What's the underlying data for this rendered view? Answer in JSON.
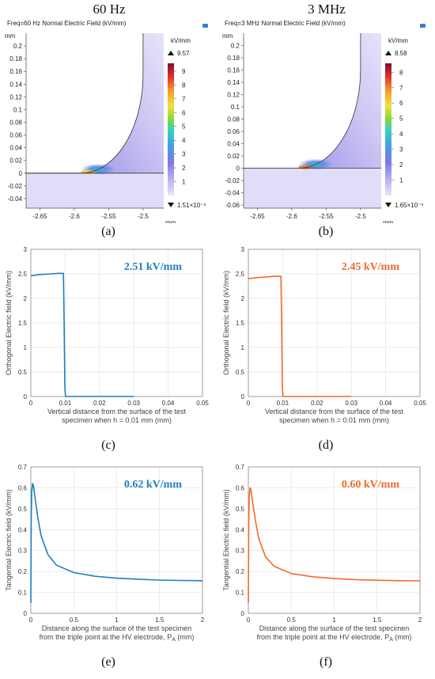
{
  "column_titles": [
    "60 Hz",
    "3 MHz"
  ],
  "sublabels": [
    "(a)",
    "(b)",
    "(c)",
    "(d)",
    "(e)",
    "(f)"
  ],
  "colors": {
    "series_60hz": "#1f7fc0",
    "series_3mhz": "#f06a2a",
    "field_fill": "#dcd8f5",
    "field_edge": "#8f86e0"
  },
  "chart_data": [
    {
      "type": "heatmap",
      "title": "Freq=60 Hz  Normal Electric Field (kV/mm)",
      "x_unit": "mm",
      "y_unit": "mm",
      "x_ticks": [
        "-2.65",
        "-2.6",
        "-2.55",
        "-2.5"
      ],
      "y_ticks": [
        "0.2",
        "0.18",
        "0.16",
        "0.14",
        "0.12",
        "0.1",
        "0.08",
        "0.06",
        "0.04",
        "0.02",
        "0",
        "-0.02",
        "-0.04"
      ],
      "xlim": [
        -2.67,
        -2.47
      ],
      "ylim": [
        -0.055,
        0.22
      ],
      "colorbar": {
        "unit": "kV/mm",
        "max_label": "9.57",
        "min_label": "1.51×10⁻⁶",
        "ticks": [
          "9",
          "8",
          "7",
          "6",
          "5",
          "4",
          "3",
          "2",
          "1"
        ],
        "max": 9.57,
        "min": 0
      }
    },
    {
      "type": "heatmap",
      "title": "Freq=3 MHz  Normal Electric Field (kV/mm)",
      "x_unit": "mm",
      "y_unit": "mm",
      "x_ticks": [
        "-2.65",
        "-2.6",
        "-2.55",
        "-2.5"
      ],
      "y_ticks": [
        "0.2",
        "0.18",
        "0.16",
        "0.14",
        "0.12",
        "0.1",
        "0.08",
        "0.06",
        "0.04",
        "0.02",
        "0",
        "-0.02",
        "-0.04",
        "-0.06"
      ],
      "xlim": [
        -2.67,
        -2.47
      ],
      "ylim": [
        -0.065,
        0.22
      ],
      "colorbar": {
        "unit": "kV/mm",
        "max_label": "8.58",
        "min_label": "1.65×10⁻⁶",
        "ticks": [
          "8",
          "7",
          "6",
          "5",
          "4",
          "3",
          "2",
          "1"
        ],
        "max": 8.58,
        "min": 0
      }
    },
    {
      "type": "line",
      "xlabel": "Vertical distance from the surface of the test specimen when h = 0.01 mm (mm)",
      "ylabel": "Orthogonal Electric field (kV/mm)",
      "annotation": "2.51 kV/mm",
      "xlim": [
        0,
        0.05
      ],
      "ylim": [
        0,
        3
      ],
      "x_ticks": [
        "0",
        "0.01",
        "0.02",
        "0.03",
        "0.04",
        "0.05"
      ],
      "y_ticks": [
        "0",
        "0.5",
        "1",
        "1.5",
        "2",
        "2.5",
        "3"
      ],
      "grid": true,
      "series": [
        {
          "x": [
            0,
            0.002,
            0.004,
            0.006,
            0.008,
            0.0095,
            0.0097,
            0.0099,
            0.0101,
            0.015,
            0.02,
            0.025,
            0.03
          ],
          "y": [
            2.46,
            2.48,
            2.49,
            2.5,
            2.51,
            2.51,
            1.5,
            0.2,
            0,
            0,
            0,
            0,
            0
          ]
        }
      ]
    },
    {
      "type": "line",
      "xlabel": "Vertical distance from the surface of the test specimen when h = 0.01 mm (mm)",
      "ylabel": "Orthogonal Electric field (kV/mm)",
      "annotation": "2.45 kV/mm",
      "xlim": [
        0,
        0.05
      ],
      "ylim": [
        0,
        3
      ],
      "x_ticks": [
        "0",
        "0.01",
        "0.02",
        "0.03",
        "0.04",
        "0.05"
      ],
      "y_ticks": [
        "0",
        "0.5",
        "1",
        "1.5",
        "2",
        "2.5",
        "3"
      ],
      "grid": true,
      "series": [
        {
          "x": [
            0,
            0.002,
            0.004,
            0.006,
            0.008,
            0.0095,
            0.0097,
            0.0099,
            0.0101,
            0.015,
            0.02,
            0.025,
            0.03
          ],
          "y": [
            2.4,
            2.42,
            2.43,
            2.44,
            2.45,
            2.45,
            1.5,
            0.2,
            0,
            0,
            0,
            0,
            0
          ]
        }
      ]
    },
    {
      "type": "line",
      "xlabel": "Distance along the surface of the test specimen from the triple point at the HV electrode, P_A (mm)",
      "ylabel": "Tangential Electric field (kV/mm)",
      "annotation": "0.62 kV/mm",
      "xlim": [
        0,
        2
      ],
      "ylim": [
        0,
        0.7
      ],
      "x_ticks": [
        "0",
        "0.5",
        "1",
        "1.5",
        "2"
      ],
      "y_ticks": [
        "0",
        "0.1",
        "0.2",
        "0.3",
        "0.4",
        "0.5",
        "0.6",
        "0.7"
      ],
      "grid": true,
      "series": [
        {
          "x": [
            0,
            0.005,
            0.01,
            0.02,
            0.03,
            0.05,
            0.08,
            0.12,
            0.2,
            0.3,
            0.5,
            0.75,
            1,
            1.25,
            1.5,
            1.75,
            2
          ],
          "y": [
            0.05,
            0.45,
            0.58,
            0.62,
            0.61,
            0.55,
            0.46,
            0.37,
            0.28,
            0.23,
            0.195,
            0.177,
            0.168,
            0.163,
            0.159,
            0.157,
            0.156
          ]
        }
      ]
    },
    {
      "type": "line",
      "xlabel": "Distance along the surface of the test specimen from the triple point at the HV electrode, P_A (mm)",
      "ylabel": "Tangential Electric field (kV/mm)",
      "annotation": "0.60 kV/mm",
      "xlim": [
        0,
        2
      ],
      "ylim": [
        0,
        0.7
      ],
      "x_ticks": [
        "0",
        "0.5",
        "1",
        "1.5",
        "2"
      ],
      "y_ticks": [
        "0",
        "0.1",
        "0.2",
        "0.3",
        "0.4",
        "0.5",
        "0.6",
        "0.7"
      ],
      "grid": true,
      "series": [
        {
          "x": [
            0,
            0.005,
            0.01,
            0.02,
            0.03,
            0.05,
            0.08,
            0.12,
            0.2,
            0.3,
            0.5,
            0.75,
            1,
            1.25,
            1.5,
            1.75,
            2
          ],
          "y": [
            0.05,
            0.44,
            0.56,
            0.6,
            0.59,
            0.53,
            0.45,
            0.36,
            0.27,
            0.225,
            0.19,
            0.175,
            0.166,
            0.161,
            0.158,
            0.156,
            0.155
          ]
        }
      ]
    }
  ]
}
